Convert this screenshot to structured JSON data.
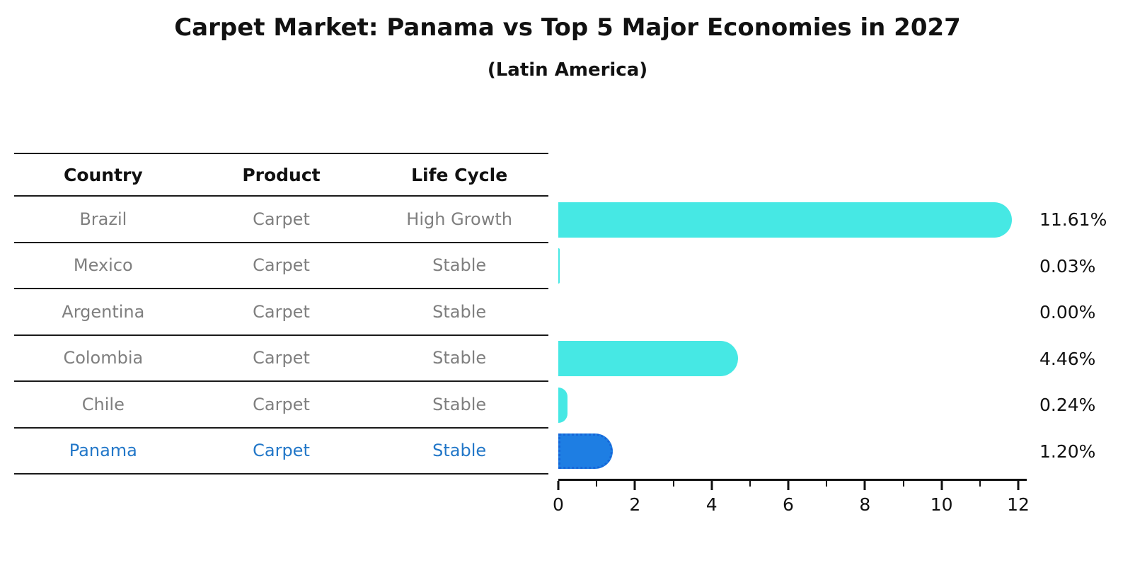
{
  "header": {
    "title": "Carpet Market: Panama vs Top 5 Major Economies in 2027",
    "subtitle": "(Latin America)"
  },
  "table": {
    "columns": [
      "Country",
      "Product",
      "Life Cycle"
    ],
    "rows": [
      {
        "country": "Brazil",
        "product": "Carpet",
        "life_cycle": "High Growth",
        "highlight": false
      },
      {
        "country": "Mexico",
        "product": "Carpet",
        "life_cycle": "Stable",
        "highlight": false
      },
      {
        "country": "Argentina",
        "product": "Carpet",
        "life_cycle": "Stable",
        "highlight": false
      },
      {
        "country": "Colombia",
        "product": "Carpet",
        "life_cycle": "Stable",
        "highlight": false
      },
      {
        "country": "Chile",
        "product": "Carpet",
        "life_cycle": "Stable",
        "highlight": false
      },
      {
        "country": "Panama",
        "product": "Carpet",
        "life_cycle": "Stable",
        "highlight": true
      }
    ]
  },
  "chart_data": {
    "type": "bar",
    "orientation": "horizontal",
    "title": "Carpet Market: Panama vs Top 5 Major Economies in 2027",
    "subtitle": "(Latin America)",
    "categories": [
      "Brazil",
      "Mexico",
      "Argentina",
      "Colombia",
      "Chile",
      "Panama"
    ],
    "values": [
      11.61,
      0.03,
      0.0,
      4.46,
      0.24,
      1.2
    ],
    "value_labels": [
      "11.61%",
      "0.03%",
      "0.00%",
      "4.46%",
      "0.24%",
      "1.20%"
    ],
    "highlight_category": "Panama",
    "xlim": [
      0,
      12
    ],
    "x_ticks": [
      0,
      2,
      4,
      6,
      8,
      10,
      12
    ],
    "grid": false,
    "legend": false,
    "colors": {
      "default_bar": "#46e8e4",
      "highlight_bar": "#1e7ee3",
      "highlight_border": "#1565d8",
      "highlight_text": "#2277c8",
      "row_text": "#7f7f7f",
      "axis": "#111111"
    }
  }
}
